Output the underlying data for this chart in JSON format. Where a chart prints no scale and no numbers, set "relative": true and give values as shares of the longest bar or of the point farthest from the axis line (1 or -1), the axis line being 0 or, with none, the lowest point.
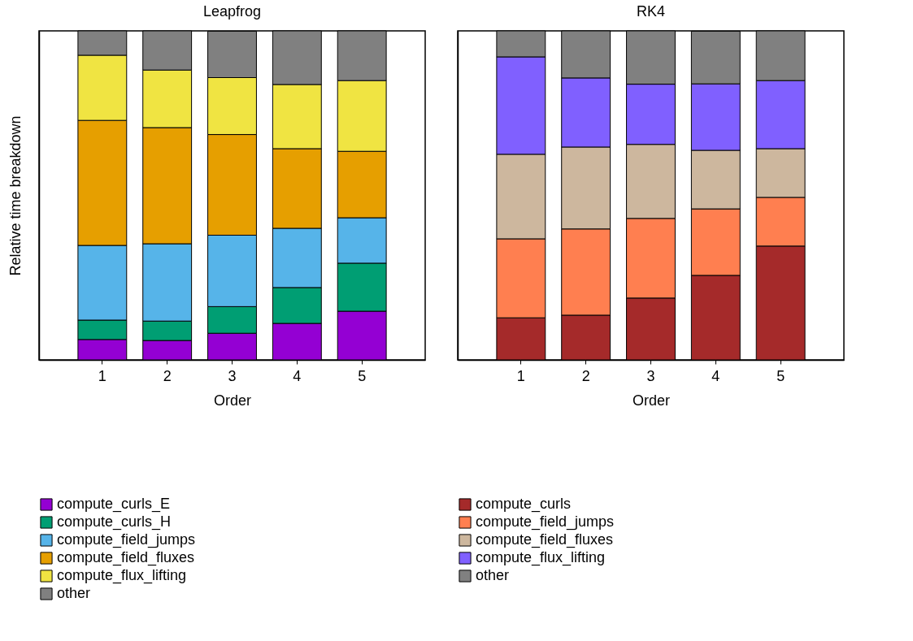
{
  "chart_data": [
    {
      "type": "bar",
      "stacked": true,
      "relative": true,
      "title": "Leapfrog",
      "xlabel": "Order",
      "ylabel": "Relative time breakdown",
      "legend": "bottom",
      "categories": [
        "1",
        "2",
        "3",
        "4",
        "5"
      ],
      "series": [
        {
          "name": "compute_curls_E",
          "color": "#9400d3",
          "values": [
            0.062,
            0.059,
            0.081,
            0.111,
            0.148
          ]
        },
        {
          "name": "compute_curls_H",
          "color": "#009e73",
          "values": [
            0.059,
            0.059,
            0.081,
            0.109,
            0.146
          ]
        },
        {
          "name": "compute_field_jumps",
          "color": "#56b4e9",
          "values": [
            0.227,
            0.235,
            0.217,
            0.18,
            0.138
          ]
        },
        {
          "name": "compute_field_fluxes",
          "color": "#e69f00",
          "values": [
            0.38,
            0.353,
            0.306,
            0.242,
            0.202
          ]
        },
        {
          "name": "compute_flux_lifting",
          "color": "#f0e442",
          "values": [
            0.198,
            0.175,
            0.173,
            0.195,
            0.215
          ]
        },
        {
          "name": "other",
          "color": "#808080",
          "values": [
            0.074,
            0.119,
            0.141,
            0.163,
            0.151
          ]
        }
      ]
    },
    {
      "type": "bar",
      "stacked": true,
      "relative": true,
      "title": "RK4",
      "xlabel": "Order",
      "legend": "bottom",
      "categories": [
        "1",
        "2",
        "3",
        "4",
        "5"
      ],
      "series": [
        {
          "name": "compute_curls",
          "color": "#a52a2a",
          "values": [
            0.128,
            0.136,
            0.188,
            0.257,
            0.346
          ]
        },
        {
          "name": "compute_field_jumps",
          "color": "#ff7f50",
          "values": [
            0.24,
            0.262,
            0.242,
            0.202,
            0.148
          ]
        },
        {
          "name": "compute_field_fluxes",
          "color": "#cdb79e",
          "values": [
            0.257,
            0.249,
            0.225,
            0.178,
            0.148
          ]
        },
        {
          "name": "compute_flux_lifting",
          "color": "#8060ff",
          "values": [
            0.296,
            0.21,
            0.183,
            0.202,
            0.207
          ]
        },
        {
          "name": "other",
          "color": "#808080",
          "values": [
            0.079,
            0.143,
            0.162,
            0.16,
            0.151
          ]
        }
      ]
    }
  ]
}
